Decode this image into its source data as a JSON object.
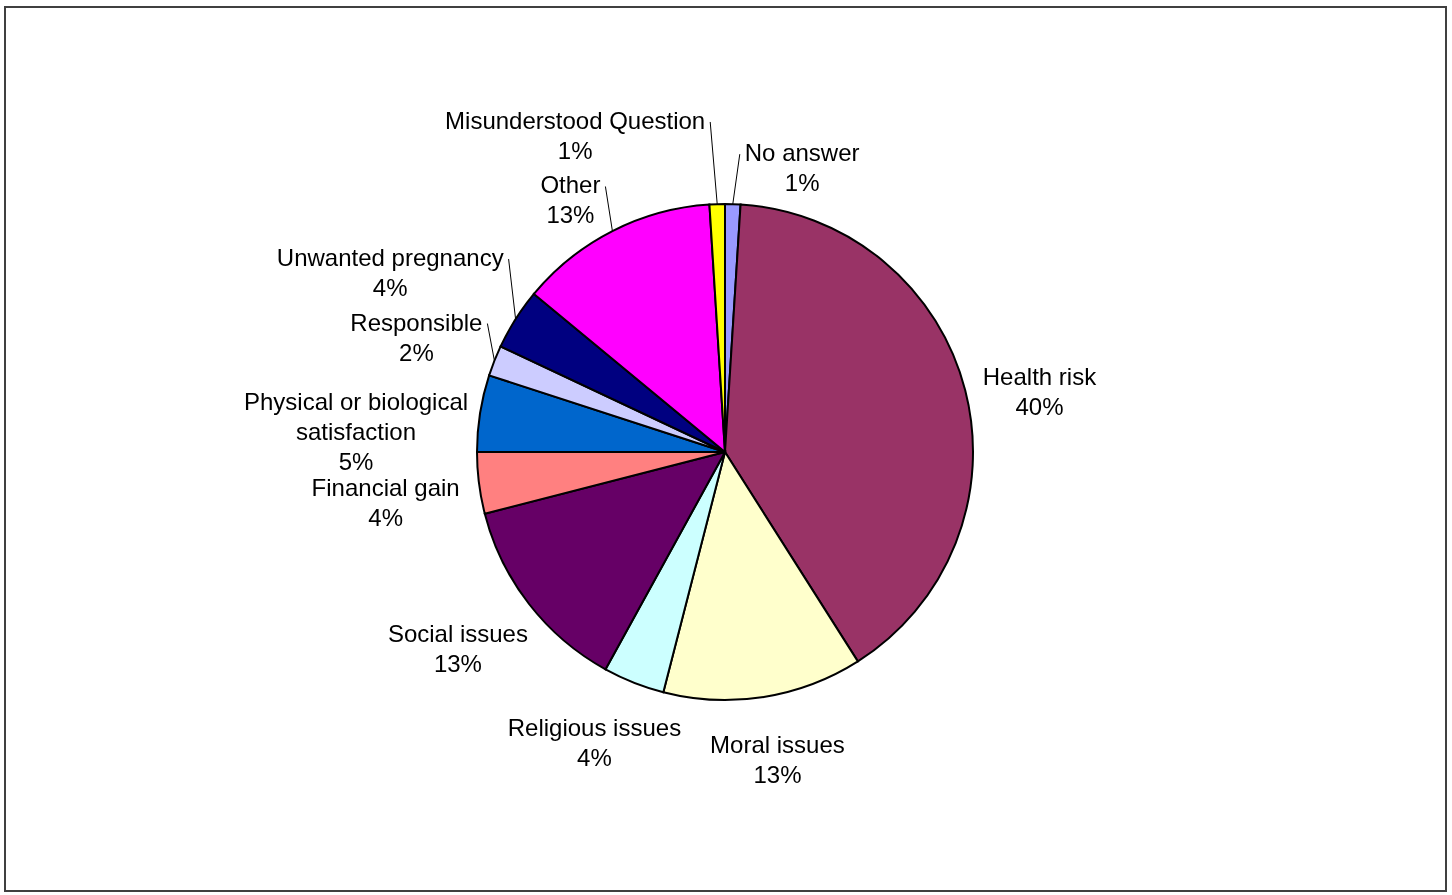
{
  "chart_data": {
    "type": "pie",
    "categories": [
      "No answer",
      "Health risk",
      "Moral issues",
      "Religious issues",
      "Social issues",
      "Financial gain",
      "Physical or biological satisfaction",
      "Responsible",
      "Unwanted pregnancy",
      "Other",
      "Misunderstood Question"
    ],
    "values": [
      1,
      40,
      13,
      4,
      13,
      4,
      5,
      2,
      4,
      13,
      1
    ],
    "colors": [
      "#9999ff",
      "#993366",
      "#ffffcc",
      "#ccffff",
      "#660066",
      "#ff8080",
      "#0066cc",
      "#ccccff",
      "#000080",
      "#ff00ff",
      "#ffff00"
    ],
    "value_labels": [
      "1%",
      "40%",
      "13%",
      "4%",
      "13%",
      "4%",
      "5%",
      "2%",
      "4%",
      "13%",
      "1%"
    ]
  }
}
